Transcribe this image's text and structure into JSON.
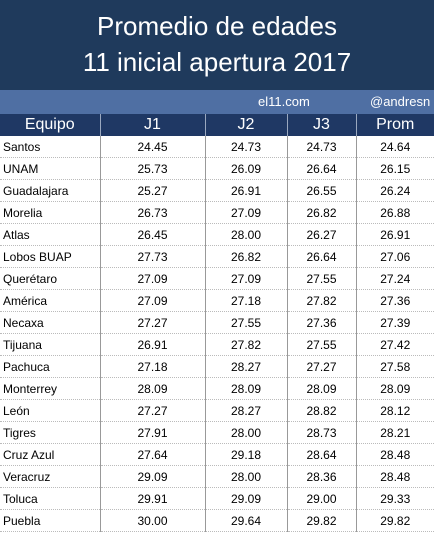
{
  "header": {
    "title_line1": "Promedio de edades",
    "title_line2": "11 inicial apertura 2017",
    "site": "el11.com",
    "handle": "@andresn"
  },
  "table": {
    "columns": [
      "Equipo",
      "J1",
      "J2",
      "J3",
      "Prom"
    ],
    "rows": [
      [
        "Santos",
        "24.45",
        "24.73",
        "24.73",
        "24.64"
      ],
      [
        "UNAM",
        "25.73",
        "26.09",
        "26.64",
        "26.15"
      ],
      [
        "Guadalajara",
        "25.27",
        "26.91",
        "26.55",
        "26.24"
      ],
      [
        "Morelia",
        "26.73",
        "27.09",
        "26.82",
        "26.88"
      ],
      [
        "Atlas",
        "26.45",
        "28.00",
        "26.27",
        "26.91"
      ],
      [
        "Lobos BUAP",
        "27.73",
        "26.82",
        "26.64",
        "27.06"
      ],
      [
        "Querétaro",
        "27.09",
        "27.09",
        "27.55",
        "27.24"
      ],
      [
        "América",
        "27.09",
        "27.18",
        "27.82",
        "27.36"
      ],
      [
        "Necaxa",
        "27.27",
        "27.55",
        "27.36",
        "27.39"
      ],
      [
        "Tijuana",
        "26.91",
        "27.82",
        "27.55",
        "27.42"
      ],
      [
        "Pachuca",
        "27.18",
        "28.27",
        "27.27",
        "27.58"
      ],
      [
        "Monterrey",
        "28.09",
        "28.09",
        "28.09",
        "28.09"
      ],
      [
        "León",
        "27.27",
        "28.27",
        "28.82",
        "28.12"
      ],
      [
        "Tigres",
        "27.91",
        "28.00",
        "28.73",
        "28.21"
      ],
      [
        "Cruz Azul",
        "27.64",
        "29.18",
        "28.64",
        "28.48"
      ],
      [
        "Veracruz",
        "29.09",
        "28.00",
        "28.36",
        "28.48"
      ],
      [
        "Toluca",
        "29.91",
        "29.09",
        "29.00",
        "29.33"
      ],
      [
        "Puebla",
        "30.00",
        "29.64",
        "29.82",
        "29.82"
      ]
    ]
  }
}
